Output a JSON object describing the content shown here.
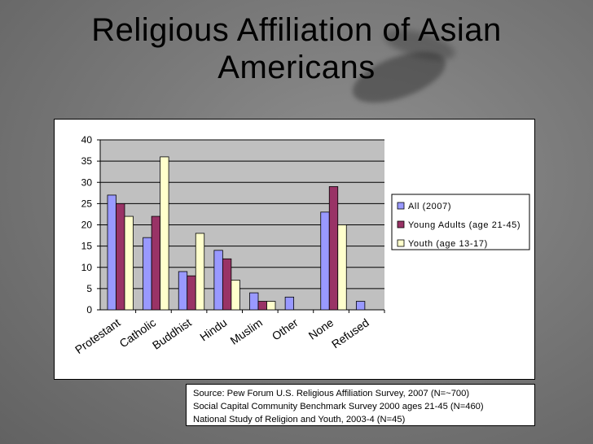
{
  "title": {
    "line1": "Religious Affiliation of Asian",
    "line2": "Americans"
  },
  "source": {
    "line1": "Source: Pew Forum U.S. Religious Affiliation Survey, 2007 (N=~700)",
    "line2": "Social Capital Community Benchmark Survey 2000 ages 21-45 (N=460)",
    "line3": "National Study of Religion and Youth, 2003-4 (N=45)"
  },
  "colors": {
    "plot_bg": "#c0c0c0",
    "grid": "#000000"
  },
  "chart_data": {
    "type": "bar",
    "categories": [
      "Protestant",
      "Catholic",
      "Buddhist",
      "Hindu",
      "Muslim",
      "Other",
      "None",
      "Refused"
    ],
    "series": [
      {
        "name": "All (2007)",
        "color": "#9999ff",
        "values": [
          27,
          17,
          9,
          14,
          4,
          3,
          23,
          2
        ]
      },
      {
        "name": "Young Adults (age 21-45)",
        "color": "#993366",
        "values": [
          25,
          22,
          8,
          12,
          2,
          null,
          29,
          null
        ]
      },
      {
        "name": "Youth (age 13-17)",
        "color": "#ffffcc",
        "values": [
          22,
          36,
          18,
          7,
          2,
          null,
          20,
          null
        ]
      }
    ],
    "ylim": [
      0,
      40
    ],
    "yticks": [
      0,
      5,
      10,
      15,
      20,
      25,
      30,
      35,
      40
    ],
    "grid": true,
    "legend": "right"
  }
}
